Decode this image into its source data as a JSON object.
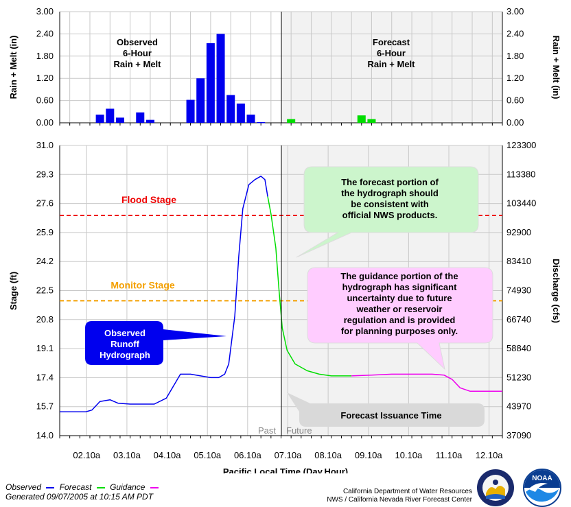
{
  "chart_data": [
    {
      "type": "bar",
      "panel": "rain-melt",
      "ylabel_left": "Rain + Melt (in)",
      "ylabel_right": "Rain + Melt (in)",
      "ylim": [
        0,
        3.0
      ],
      "yticks": [
        "0.00",
        "0.60",
        "1.20",
        "1.80",
        "2.40",
        "3.00"
      ],
      "observed_label": "Observed\n6-Hour\nRain + Melt",
      "forecast_label": "Forecast\n6-Hour\nRain + Melt",
      "observed_color": "#0000ee",
      "forecast_color": "#00dd00",
      "observed_bars": [
        {
          "day": 2.75,
          "value": 0.22
        },
        {
          "day": 3.0,
          "value": 0.38
        },
        {
          "day": 3.25,
          "value": 0.14
        },
        {
          "day": 3.75,
          "value": 0.28
        },
        {
          "day": 4.0,
          "value": 0.08
        },
        {
          "day": 5.0,
          "value": 0.62
        },
        {
          "day": 5.25,
          "value": 1.2
        },
        {
          "day": 5.5,
          "value": 2.15
        },
        {
          "day": 5.75,
          "value": 2.4
        },
        {
          "day": 6.0,
          "value": 0.75
        },
        {
          "day": 6.25,
          "value": 0.52
        },
        {
          "day": 6.5,
          "value": 0.22
        },
        {
          "day": 6.75,
          "value": 0.02
        }
      ],
      "forecast_bars": [
        {
          "day": 7.5,
          "value": 0.1
        },
        {
          "day": 9.25,
          "value": 0.2
        },
        {
          "day": 9.5,
          "value": 0.1
        }
      ]
    },
    {
      "type": "line",
      "panel": "stage",
      "xlabel": "Pacific Local Time (Day.Hour)",
      "ylabel_left": "Stage (ft)",
      "ylabel_right": "Discharge (cfs)",
      "ylim": [
        14.0,
        31.0
      ],
      "xlim": [
        1.75,
        12.75
      ],
      "xtick_days": [
        2.42,
        3.42,
        4.42,
        5.42,
        6.42,
        7.42,
        8.42,
        9.42,
        10.42,
        11.42,
        12.42
      ],
      "xticks": [
        "02.10a",
        "03.10a",
        "04.10a",
        "05.10a",
        "06.10a",
        "07.10a",
        "08.10a",
        "09.10a",
        "10.10a",
        "11.10a",
        "12.10a"
      ],
      "yticks_left": [
        "14.0",
        "15.7",
        "17.4",
        "19.1",
        "20.8",
        "22.5",
        "24.2",
        "25.9",
        "27.6",
        "29.3",
        "31.0"
      ],
      "yticks_right": [
        "37090",
        "43970",
        "51230",
        "58840",
        "66740",
        "74930",
        "83410",
        "92900",
        "103440",
        "113380",
        "123300"
      ],
      "flood_stage": {
        "label": "Flood Stage",
        "value": 26.9,
        "color": "#ee0000"
      },
      "monitor_stage": {
        "label": "Monitor Stage",
        "value": 21.9,
        "color": "#f4a000"
      },
      "issuance_day": 6.92,
      "past_label": "Past",
      "future_label": "Future",
      "series": [
        {
          "name": "Observed",
          "color": "#0000ee",
          "x": [
            1.75,
            2.4,
            2.55,
            2.75,
            3.0,
            3.2,
            3.5,
            4.1,
            4.4,
            4.6,
            4.75,
            5.0,
            5.5,
            5.7,
            5.85,
            5.95,
            6.1,
            6.2,
            6.3,
            6.45,
            6.6,
            6.75,
            6.85,
            6.92
          ],
          "y": [
            15.4,
            15.4,
            15.5,
            16.0,
            16.1,
            15.9,
            15.85,
            15.85,
            16.2,
            17.0,
            17.6,
            17.6,
            17.4,
            17.4,
            17.6,
            18.2,
            21.0,
            24.5,
            27.3,
            28.7,
            29.0,
            29.2,
            29.0,
            28.0
          ]
        },
        {
          "name": "Forecast",
          "color": "#00dd00",
          "x": [
            6.92,
            7.0,
            7.12,
            7.2,
            7.28,
            7.4,
            7.6,
            7.9,
            8.2,
            8.5,
            8.75,
            9.0
          ],
          "y": [
            28.0,
            27.0,
            25.0,
            22.5,
            20.3,
            19.0,
            18.2,
            17.8,
            17.6,
            17.5,
            17.5,
            17.5
          ]
        },
        {
          "name": "Guidance",
          "color": "#ee00ee",
          "x": [
            9.0,
            9.5,
            10.0,
            10.5,
            11.0,
            11.3,
            11.5,
            11.7,
            11.95,
            12.75
          ],
          "y": [
            17.5,
            17.55,
            17.6,
            17.6,
            17.6,
            17.55,
            17.3,
            16.8,
            16.6,
            16.6
          ]
        }
      ],
      "callouts": {
        "forecast_note": "The forecast portion of\nthe hydrograph should\nbe consistent with\nofficial NWS products.",
        "guidance_note": "The guidance portion of the\nhydrograph has significant\nuncertainty due to future\nweather or reservoir\nregulation and is provided\nfor planning purposes only.",
        "observed_note": "Observed\nRunoff\nHydrograph",
        "issuance_note": "Forecast Issuance Time"
      }
    }
  ],
  "legend": {
    "observed": "Observed",
    "forecast": "Forecast",
    "guidance": "Guidance",
    "observed_color": "#0000ee",
    "forecast_color": "#00dd00",
    "guidance_color": "#ee00ee"
  },
  "generated": "Generated 09/07/2005  at 10:15 AM PDT",
  "agency_line1": "California Department of Water Resources",
  "agency_line2": "NWS / California Nevada River Forecast Center",
  "logos": {
    "dwr": "dwr-seal-icon",
    "noaa": "noaa-logo-icon",
    "noaa_text": "NOAA"
  }
}
